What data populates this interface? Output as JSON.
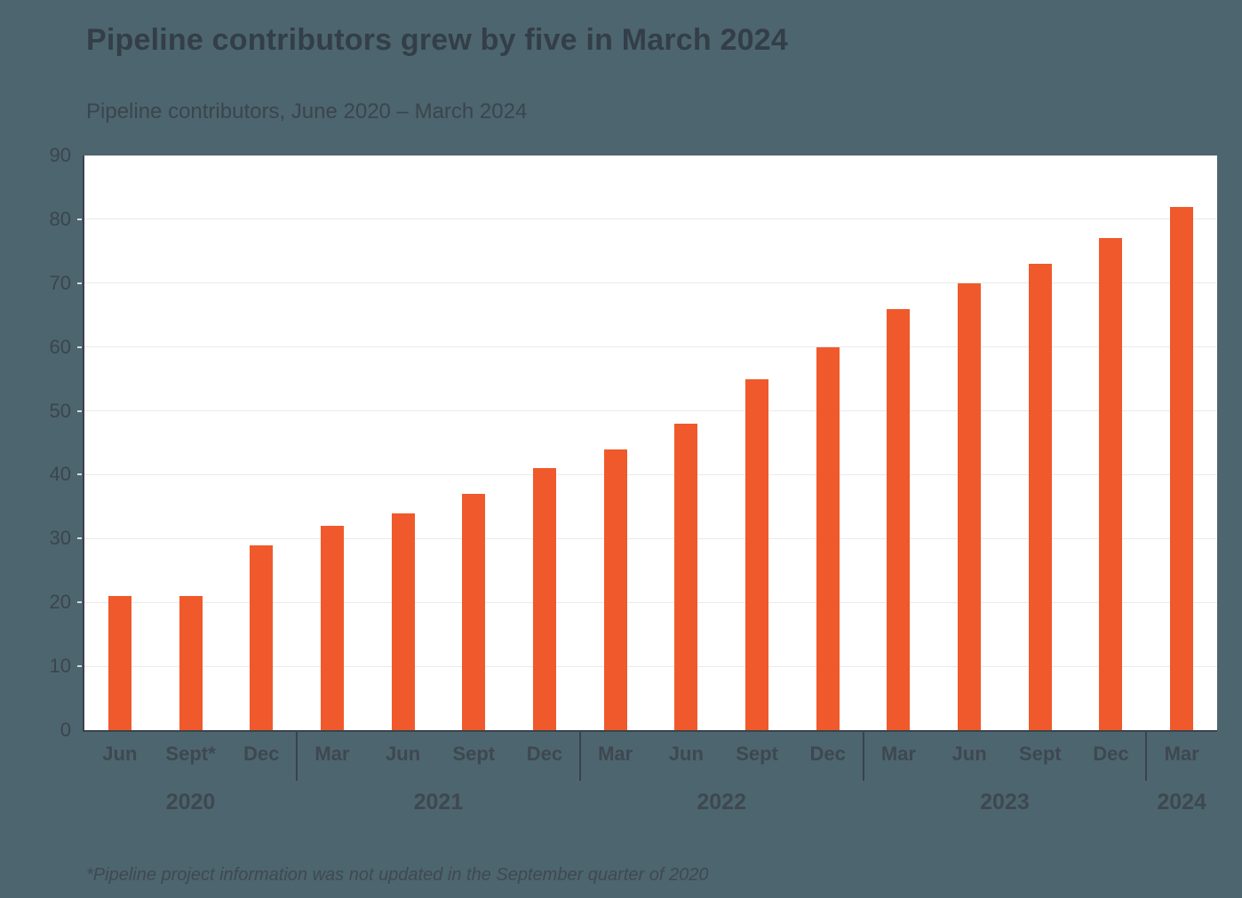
{
  "header": {
    "title": "Pipeline contributors grew by five in March 2024",
    "subtitle": "Pipeline contributors, June 2020 – March 2024"
  },
  "footnote": "*Pipeline project information was not updated in the September quarter of 2020",
  "colors": {
    "background": "#4D656E",
    "plot_background": "#FFFFFF",
    "bar": "#F0592B",
    "axis": "#39434C",
    "gridline": "#EAEAEA",
    "title_text": "#333E48",
    "label_text": "#3E4851"
  },
  "chart_data": {
    "type": "bar",
    "title": "Pipeline contributors grew by five in March 2024",
    "subtitle": "Pipeline contributors, June 2020 – March 2024",
    "xlabel": "",
    "ylabel": "",
    "ylim": [
      0,
      90
    ],
    "yticks": [
      0,
      10,
      20,
      30,
      40,
      50,
      60,
      70,
      80,
      90
    ],
    "grid": true,
    "legend": false,
    "categories": [
      "Jun",
      "Sept*",
      "Dec",
      "Mar",
      "Jun",
      "Sept",
      "Dec",
      "Mar",
      "Jun",
      "Sept",
      "Dec",
      "Mar",
      "Jun",
      "Sept",
      "Dec",
      "Mar"
    ],
    "year_groups": [
      {
        "label": "2020",
        "span": 3
      },
      {
        "label": "2021",
        "span": 4
      },
      {
        "label": "2022",
        "span": 4
      },
      {
        "label": "2023",
        "span": 4
      },
      {
        "label": "2024",
        "span": 1
      }
    ],
    "values": [
      21,
      21,
      29,
      32,
      34,
      37,
      41,
      44,
      48,
      55,
      60,
      66,
      70,
      73,
      77,
      82
    ]
  }
}
